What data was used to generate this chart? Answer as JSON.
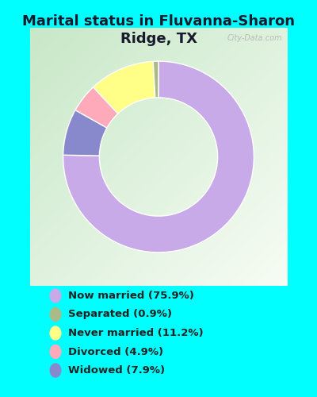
{
  "title": "Marital status in Fluvanna-Sharon\nRidge, TX",
  "title_fontsize": 13,
  "background_color": "#00FFFF",
  "chart_bg_gradient_top_left": "#c8e8c8",
  "chart_bg_gradient_bottom_right": "#e8f8f0",
  "wedge_order": [
    "Now married",
    "Widowed",
    "Divorced",
    "Never married",
    "Separated"
  ],
  "wedge_values": [
    75.9,
    7.9,
    4.9,
    11.2,
    0.9
  ],
  "wedge_colors": [
    "#c8aae8",
    "#8888cc",
    "#ffaabb",
    "#ffff88",
    "#aabb88"
  ],
  "legend_labels": [
    "Now married (75.9%)",
    "Separated (0.9%)",
    "Never married (11.2%)",
    "Divorced (4.9%)",
    "Widowed (7.9%)"
  ],
  "legend_colors": [
    "#c8aae8",
    "#aabb88",
    "#ffff88",
    "#ffaabb",
    "#8888cc"
  ],
  "watermark": "City-Data.com",
  "donut_width": 0.38
}
